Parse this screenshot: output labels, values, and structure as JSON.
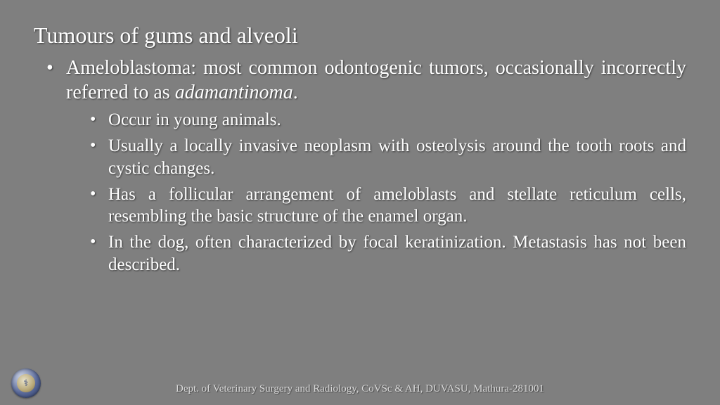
{
  "background_color": "#7f7f7f",
  "text_color": "#ffffff",
  "shadow_color": "rgba(0,0,0,0.6)",
  "title": "Tumours of gums and alveoli",
  "title_fontsize": 32,
  "body_fontsize_outer": 28,
  "body_fontsize_inner": 25,
  "outer": {
    "lead": "Ameloblastoma: most common odontogenic tumors, occasionally incorrectly referred to as ",
    "italic": "adamantinoma",
    "tail": "."
  },
  "inner": [
    "Occur in young animals.",
    "Usually a locally invasive neoplasm with osteolysis around the tooth roots and cystic changes.",
    "Has a follicular arrangement of ameloblasts and stellate reticulum cells, resembling the basic structure of the enamel organ.",
    "In the dog, often characterized by focal keratinization. Metastasis has not been described."
  ],
  "footer": "Dept. of Veterinary Surgery and Radiology, CoVSc & AH, DUVASU, Mathura-281001",
  "logo": {
    "outer_gradient": [
      "#cfd6e6",
      "#5a6a9a",
      "#2a3860"
    ],
    "inner_gradient": [
      "#e8e2c8",
      "#b8a878",
      "#7a6a40"
    ],
    "glyph": "⚕"
  }
}
